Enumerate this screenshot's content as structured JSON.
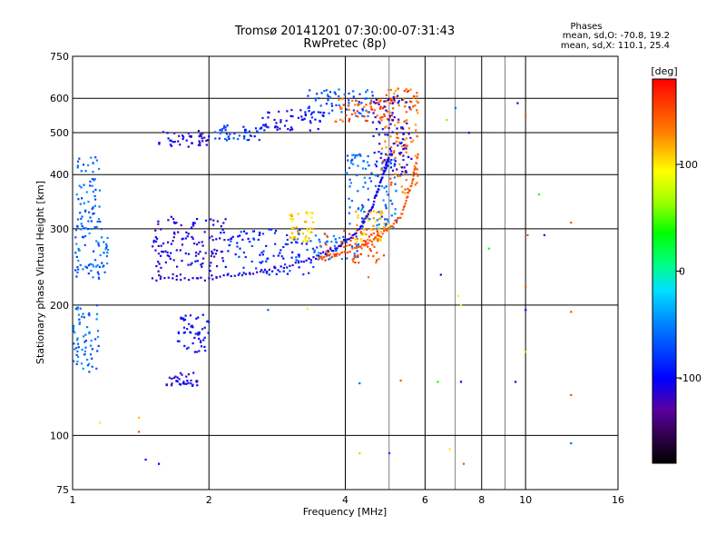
{
  "chart_data": {
    "type": "scatter",
    "title": "Tromsø 20141201 07:30:00-07:31:43",
    "subtitle": "RwPretec (8p)",
    "xlabel": "Frequency [MHz]",
    "ylabel": "Stationary phase Virtual Height [km]",
    "x_scale": "log",
    "y_scale": "log",
    "xlim": [
      1,
      16
    ],
    "ylim": [
      75,
      750
    ],
    "x_ticks": [
      1,
      2,
      4,
      6,
      8,
      10,
      16
    ],
    "x_tick_labels": [
      "1",
      "2",
      "4",
      "6",
      "8",
      "10",
      "16"
    ],
    "x_grid_lines": [
      2,
      4,
      6,
      8,
      10
    ],
    "x_minor_grid_lines": [
      5,
      7,
      9
    ],
    "y_ticks": [
      75,
      100,
      200,
      300,
      400,
      500,
      600,
      750
    ],
    "y_tick_labels": [
      "75",
      "100",
      "200",
      "300",
      "400",
      "500",
      "600",
      "750"
    ],
    "y_grid_lines": [
      100,
      200,
      300,
      400,
      500,
      600
    ],
    "grid": true,
    "info": {
      "heading": "Phases",
      "line_o": "mean, sd,O: -70.8, 19.2",
      "line_x": "mean, sd,X: 110.1, 25.4"
    },
    "colorbar": {
      "label": "[deg]",
      "range": [
        -180,
        180
      ],
      "ticks": [
        100,
        0,
        -100
      ],
      "tick_labels": [
        "100",
        "0",
        "-100"
      ],
      "placement": "right"
    },
    "series": [
      {
        "segments": [
          {
            "x": [
              1.55,
              2.0
            ],
            "y": [
              460,
              505
            ],
            "phase": -110
          },
          {
            "x": [
              2.0,
              2.6
            ],
            "y": [
              480,
              520
            ],
            "phase": -80
          },
          {
            "x": [
              2.6,
              3.6
            ],
            "y": [
              505,
              570
            ],
            "phase": -100
          },
          {
            "x": [
              3.3,
              4.6
            ],
            "y": [
              545,
              630
            ],
            "phase": -70
          },
          {
            "x": [
              3.8,
              5.2
            ],
            "y": [
              530,
              605
            ],
            "phase": 150
          },
          {
            "x": [
              1.5,
              2.2
            ],
            "y": [
              230,
              320
            ],
            "phase": -110
          },
          {
            "x": [
              2.2,
              3.4
            ],
            "y": [
              235,
              300
            ],
            "phase": -85
          },
          {
            "x": [
              3.0,
              3.4
            ],
            "y": [
              280,
              330
            ],
            "phase": 110
          },
          {
            "x": [
              3.4,
              4.3
            ],
            "y": [
              255,
              290
            ],
            "phase": -55
          },
          {
            "x": [
              3.5,
              4.9
            ],
            "y": [
              250,
              300
            ],
            "phase": 150
          },
          {
            "x": [
              4.2,
              5.0
            ],
            "y": [
              280,
              330
            ],
            "phase": 110
          },
          {
            "x": [
              4.0,
              5.2
            ],
            "y": [
              300,
              450
            ],
            "phase": -60
          },
          {
            "x": [
              4.8,
              5.8
            ],
            "y": [
              360,
              640
            ],
            "phase": 140
          },
          {
            "x": [
              4.6,
              5.6
            ],
            "y": [
              400,
              610
            ],
            "phase": -105
          },
          {
            "x": [
              1.0,
              1.15
            ],
            "y": [
              140,
              200
            ],
            "phase": -60
          },
          {
            "x": [
              1.0,
              1.2
            ],
            "y": [
              230,
              300
            ],
            "phase": -60
          },
          {
            "x": [
              1.7,
              2.0
            ],
            "y": [
              155,
              190
            ],
            "phase": -100
          },
          {
            "x": [
              1.6,
              1.9
            ],
            "y": [
              130,
              140
            ],
            "phase": -110
          },
          {
            "x": [
              1.02,
              1.15
            ],
            "y": [
              300,
              440
            ],
            "phase": -60
          }
        ],
        "curves": [
          {
            "x": [
              1.5,
              2.0,
              2.6,
              3.2,
              3.8,
              4.3,
              4.6,
              4.8,
              5.0
            ],
            "y": [
              230,
              230,
              238,
              250,
              270,
              300,
              340,
              390,
              440
            ],
            "phase": -110
          },
          {
            "x": [
              3.5,
              4.2,
              4.8,
              5.3,
              5.6,
              5.8
            ],
            "y": [
              255,
              270,
              290,
              320,
              380,
              450
            ],
            "phase": 150
          }
        ],
        "points": [
          {
            "x": 1.45,
            "y": 88,
            "phase": -100
          },
          {
            "x": 1.55,
            "y": 86,
            "phase": -100
          },
          {
            "x": 1.15,
            "y": 107,
            "phase": 100
          },
          {
            "x": 1.4,
            "y": 102,
            "phase": 150
          },
          {
            "x": 1.4,
            "y": 110,
            "phase": 110
          },
          {
            "x": 4.3,
            "y": 132,
            "phase": -60
          },
          {
            "x": 4.3,
            "y": 91,
            "phase": 110
          },
          {
            "x": 5.0,
            "y": 91,
            "phase": -80
          },
          {
            "x": 5.3,
            "y": 134,
            "phase": 150
          },
          {
            "x": 6.4,
            "y": 133,
            "phase": 40
          },
          {
            "x": 7.2,
            "y": 133,
            "phase": -100
          },
          {
            "x": 9.5,
            "y": 133,
            "phase": -110
          },
          {
            "x": 10.0,
            "y": 156,
            "phase": 110
          },
          {
            "x": 10.0,
            "y": 195,
            "phase": -100
          },
          {
            "x": 12.6,
            "y": 193,
            "phase": 150
          },
          {
            "x": 12.6,
            "y": 124,
            "phase": 150
          },
          {
            "x": 10.0,
            "y": 220,
            "phase": 150
          },
          {
            "x": 10.1,
            "y": 290,
            "phase": 150
          },
          {
            "x": 11.0,
            "y": 290,
            "phase": -110
          },
          {
            "x": 12.6,
            "y": 310,
            "phase": 150
          },
          {
            "x": 10.7,
            "y": 360,
            "phase": 40
          },
          {
            "x": 8.3,
            "y": 270,
            "phase": 30
          },
          {
            "x": 6.5,
            "y": 235,
            "phase": -110
          },
          {
            "x": 7.1,
            "y": 210,
            "phase": 100
          },
          {
            "x": 7.2,
            "y": 200,
            "phase": 100
          },
          {
            "x": 7.3,
            "y": 86,
            "phase": 150
          },
          {
            "x": 6.8,
            "y": 93,
            "phase": 100
          },
          {
            "x": 12.6,
            "y": 96,
            "phase": -60
          },
          {
            "x": 9.6,
            "y": 585,
            "phase": -110
          },
          {
            "x": 10.0,
            "y": 545,
            "phase": 150
          },
          {
            "x": 7.0,
            "y": 570,
            "phase": -60
          },
          {
            "x": 7.5,
            "y": 500,
            "phase": -110
          },
          {
            "x": 6.7,
            "y": 535,
            "phase": 60
          },
          {
            "x": 3.3,
            "y": 196,
            "phase": 100
          },
          {
            "x": 4.5,
            "y": 260,
            "phase": 150
          },
          {
            "x": 4.5,
            "y": 232,
            "phase": 140
          },
          {
            "x": 2.7,
            "y": 195,
            "phase": -60
          }
        ]
      }
    ]
  }
}
